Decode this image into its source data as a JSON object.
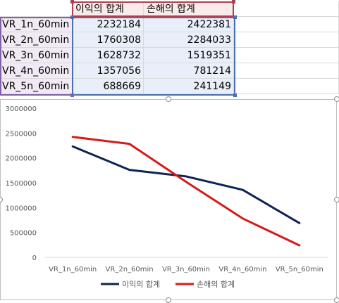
{
  "sheet": {
    "headers": [
      "",
      "이익의 합계",
      "손해의 합계"
    ],
    "rows": [
      {
        "label": "VR_1n_60min",
        "profit": "2232184",
        "loss": "2422381"
      },
      {
        "label": "VR_2n_60min",
        "profit": "1760308",
        "loss": "2284033"
      },
      {
        "label": "VR_3n_60min",
        "profit": "1628732",
        "loss": "1519351"
      },
      {
        "label": "VR_4n_60min",
        "profit": "1357056",
        "loss": "781214"
      },
      {
        "label": "VR_5n_60min",
        "profit": "688669",
        "loss": "241149"
      }
    ]
  },
  "chart_data": {
    "type": "line",
    "categories": [
      "VR_1n_60min",
      "VR_2n_60min",
      "VR_3n_60min",
      "VR_4n_60min",
      "VR_5n_60min"
    ],
    "series": [
      {
        "name": "이익의 합계",
        "values": [
          2232184,
          1760308,
          1628732,
          1357056,
          688669
        ],
        "color": "#0f2354"
      },
      {
        "name": "손해의 합계",
        "values": [
          2422381,
          2284033,
          1519351,
          781214,
          241149
        ],
        "color": "#d61a1a"
      }
    ],
    "yticks": [
      "0",
      "500000",
      "1000000",
      "1500000",
      "2000000",
      "2500000",
      "3000000"
    ],
    "ylim": [
      0,
      3000000
    ],
    "grid": false,
    "legend": "bottom",
    "title": "",
    "xlabel": "",
    "ylabel": ""
  }
}
